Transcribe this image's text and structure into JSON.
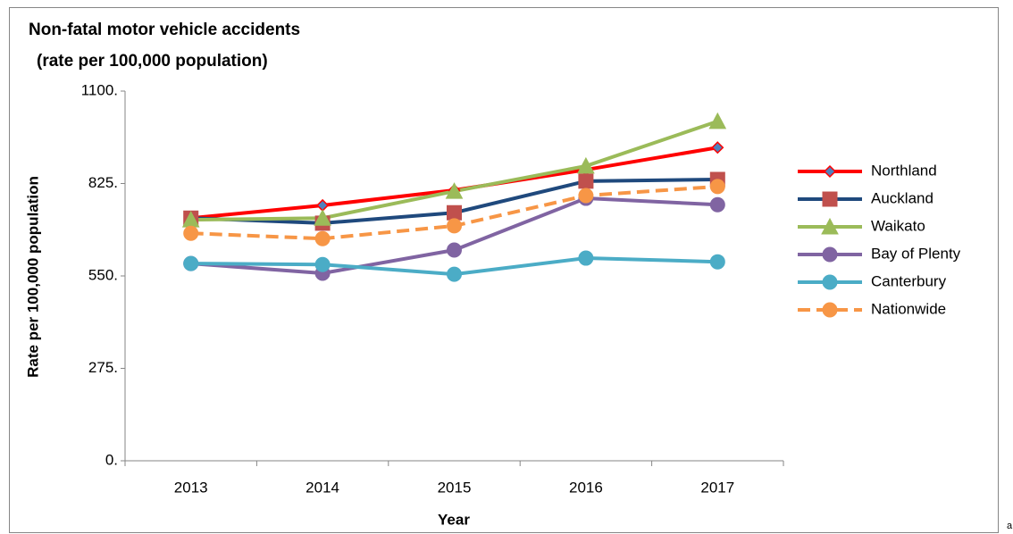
{
  "chart_data": {
    "type": "line",
    "title": [
      "Non-fatal motor vehicle accidents",
      "(rate per 100,000 population)"
    ],
    "x_label": "Year",
    "y_label": "Rate per 100,000 population",
    "annotation": "a",
    "categories": [
      "2013",
      "2014",
      "2015",
      "2016",
      "2017"
    ],
    "series": [
      {
        "name": "Northland",
        "color": "#ff0000",
        "marker": "diamond",
        "marker_fill": "#4f81bd",
        "dashed": false,
        "values": [
          722,
          760,
          805,
          866,
          932
        ]
      },
      {
        "name": "Auckland",
        "color": "#1f497d",
        "marker": "square",
        "marker_fill": "#c0504d",
        "dashed": false,
        "values": [
          722,
          707,
          738,
          832,
          837
        ]
      },
      {
        "name": "Waikato",
        "color": "#9bbb59",
        "marker": "triangle",
        "marker_fill": "#9bbb59",
        "dashed": false,
        "values": [
          717,
          722,
          802,
          877,
          1010
        ]
      },
      {
        "name": "Bay of Plenty",
        "color": "#8064a2",
        "marker": "circle",
        "marker_fill": "#8064a2",
        "dashed": false,
        "values": [
          587,
          558,
          627,
          781,
          762
        ]
      },
      {
        "name": "Canterbury",
        "color": "#4bacc6",
        "marker": "circle",
        "marker_fill": "#4bacc6",
        "dashed": false,
        "values": [
          587,
          584,
          555,
          603,
          592
        ]
      },
      {
        "name": "Nationwide",
        "color": "#f79646",
        "marker": "circle",
        "marker_fill": "#f79646",
        "dashed": true,
        "values": [
          677,
          661,
          699,
          789,
          816
        ]
      }
    ],
    "ylim": [
      0,
      1100
    ],
    "yticks": [
      {
        "value": 0,
        "label": "0."
      },
      {
        "value": 275,
        "label": "275."
      },
      {
        "value": 550,
        "label": "550."
      },
      {
        "value": 825,
        "label": "825."
      },
      {
        "value": 1100,
        "label": "1100."
      }
    ],
    "grid": false,
    "legend": "right"
  }
}
